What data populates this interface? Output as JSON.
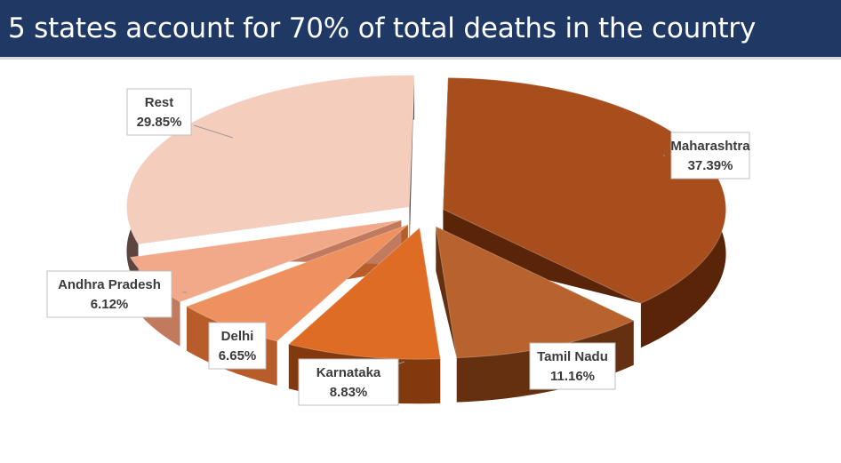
{
  "header": {
    "title": "5 states account for 70% of total deaths in the country"
  },
  "chart_data": {
    "type": "pie",
    "title": "5 states account for 70% of total deaths in the country",
    "style": "3d-exploded",
    "categories": [
      "Maharashtra",
      "Tamil Nadu",
      "Karnataka",
      "Delhi",
      "Andhra Pradesh",
      "Rest"
    ],
    "values": [
      37.39,
      11.16,
      8.83,
      6.65,
      6.12,
      29.85
    ],
    "value_labels": [
      "37.39%",
      "11.16%",
      "8.83%",
      "6.65%",
      "6.12%",
      "29.85%"
    ],
    "colors": [
      "#a84e1c",
      "#b8622e",
      "#de6c24",
      "#ee915e",
      "#f2a989",
      "#f4cdbd"
    ],
    "colors_side": [
      "#5a2408",
      "#64300f",
      "#82390d",
      "#b85c2a",
      "#c27a5e",
      "#5c4540"
    ]
  }
}
